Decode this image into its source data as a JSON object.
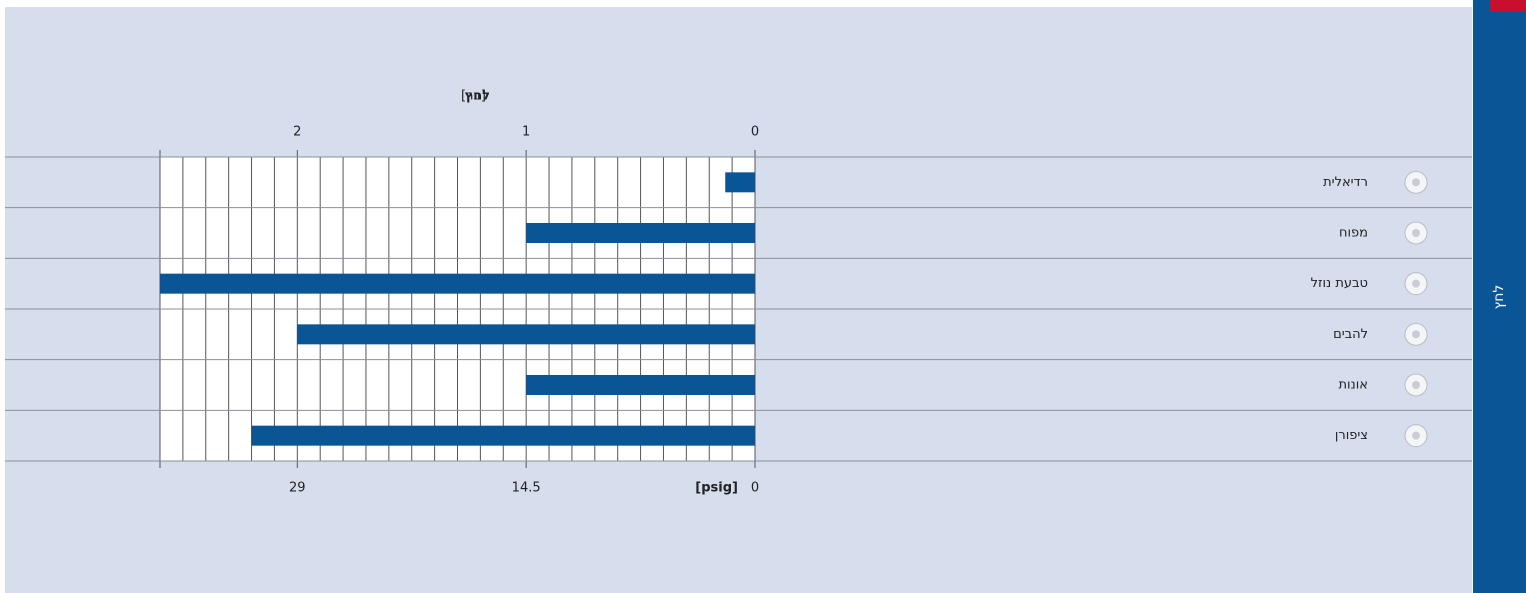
{
  "chart_data": {
    "type": "bar",
    "orientation": "horizontal",
    "reversed_x": true,
    "side_tab": "לחץ",
    "axis_title": "לחץ",
    "axis_unit": "[בר]",
    "x2_label": "[psig]",
    "categories": [
      "רדיאלית",
      "מפוח",
      "טבעת נוזל",
      "להבים",
      "אונות",
      "ציפורן"
    ],
    "values": [
      0.13,
      1,
      2.6,
      2,
      1,
      2.2
    ],
    "color": "#0a5596",
    "xlim": [
      0,
      2.6
    ],
    "xticks": [
      0,
      1,
      2
    ],
    "x2ticks": [
      {
        "value": 0,
        "label": "0"
      },
      {
        "value": 1,
        "label": "14.5"
      },
      {
        "value": 2,
        "label": "29"
      }
    ],
    "xgrid": [
      0,
      0.1,
      0.2,
      0.3,
      0.4,
      0.5,
      0.6,
      0.7,
      0.8,
      0.9,
      1,
      1.1,
      1.2,
      1.3,
      1.4,
      1.5,
      1.6,
      1.7,
      1.8,
      1.9,
      2,
      2.1,
      2.2,
      2.3,
      2.4,
      2.5,
      2.6
    ],
    "grid": true
  }
}
